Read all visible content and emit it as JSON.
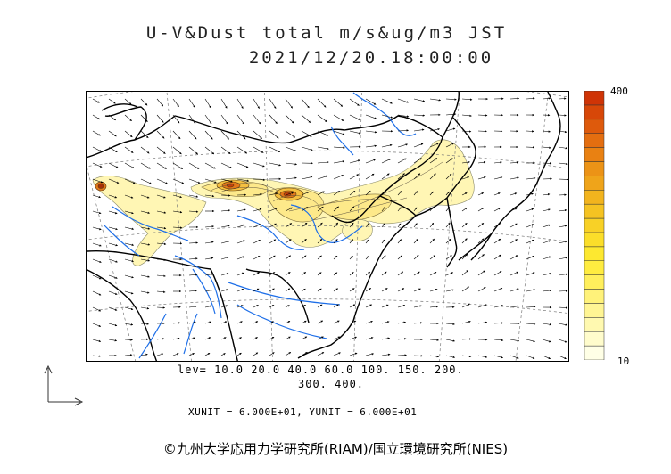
{
  "title": {
    "line1": "U-V&Dust total m/s&ug/m3 JST",
    "line2": "2021/12/20.18:00:00"
  },
  "colorbar": {
    "max_label": "400",
    "min_label": "10",
    "colors": [
      "#ffffe6",
      "#fffccc",
      "#fff9b0",
      "#fff594",
      "#fff27a",
      "#ffef5c",
      "#ffec40",
      "#fde830",
      "#fbde2a",
      "#f8d126",
      "#f5c322",
      "#f2b41e",
      "#efa41a",
      "#ec9316",
      "#e98112",
      "#e46e10",
      "#de5a0c",
      "#d74708",
      "#cf3406"
    ]
  },
  "levels": {
    "line1": "lev= 10.0 20.0 40.0 60.0 100. 150. 200.",
    "line2": "300. 400."
  },
  "units": "XUNIT = 6.000E+01, YUNIT = 6.000E+01",
  "copyright": "©九州大学応用力学研究所(RIAM)/国立環境研究所(NIES)",
  "colors": {
    "coast": "#000000",
    "river": "#1e6fe8",
    "dust_low": "#fff6b4",
    "dust_mid": "#fde24a",
    "dust_high": "#e36a12",
    "grid": "#7a7a7a"
  }
}
